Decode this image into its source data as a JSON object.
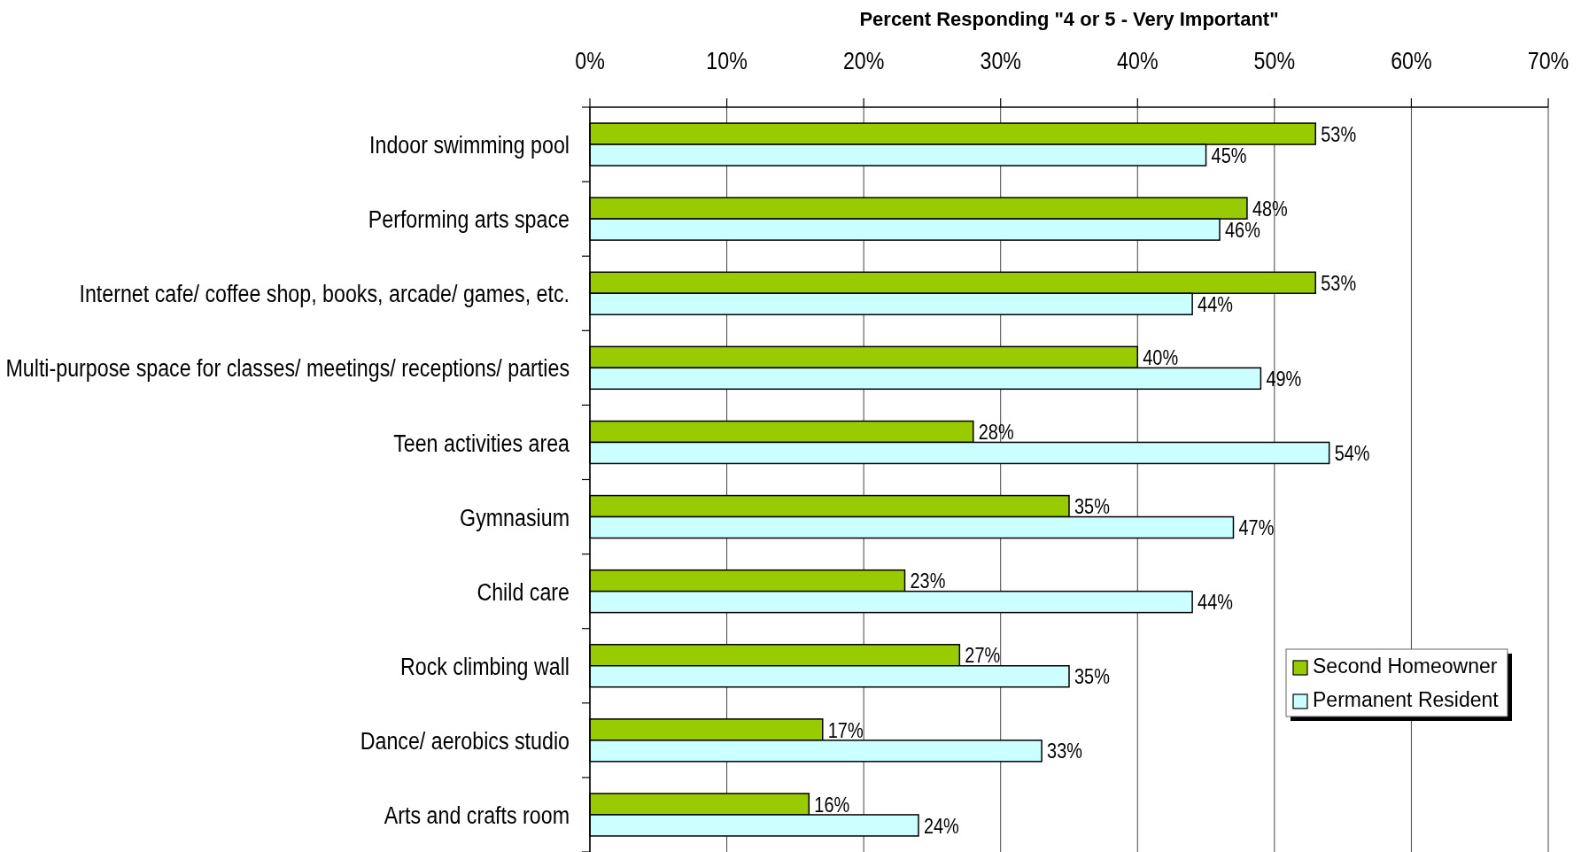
{
  "chart_data": {
    "type": "bar",
    "orientation": "horizontal",
    "xlabel": "Percent Responding \"4 or 5 - Very Important\"",
    "categories": [
      "Indoor swimming pool",
      "Performing arts space",
      "Internet cafe/ coffee shop, books, arcade/ games, etc.",
      "Multi-purpose space for classes/ meetings/ receptions/ parties",
      "Teen activities area",
      "Gymnasium",
      "Child care",
      "Rock climbing wall",
      "Dance/ aerobics studio",
      "Arts and crafts room"
    ],
    "series": [
      {
        "name": "Second Homeowner",
        "color": "#99cc00",
        "values": [
          53,
          48,
          53,
          40,
          28,
          35,
          23,
          27,
          17,
          16
        ],
        "value_labels": [
          "53%",
          "48%",
          "53%",
          "40%",
          "28%",
          "35%",
          "23%",
          "27%",
          "17%",
          "16%"
        ]
      },
      {
        "name": "Permanent Resident",
        "color": "#ccffff",
        "values": [
          45,
          46,
          44,
          49,
          54,
          47,
          44,
          35,
          33,
          24
        ],
        "value_labels": [
          "45%",
          "46%",
          "44%",
          "49%",
          "54%",
          "47%",
          "44%",
          "35%",
          "33%",
          "24%"
        ]
      }
    ],
    "xlim": [
      0,
      70
    ],
    "xticks": [
      {
        "value": 0,
        "label": "0%"
      },
      {
        "value": 10,
        "label": "10%"
      },
      {
        "value": 20,
        "label": "20%"
      },
      {
        "value": 30,
        "label": "30%"
      },
      {
        "value": 40,
        "label": "40%"
      },
      {
        "value": 50,
        "label": "50%"
      },
      {
        "value": 60,
        "label": "60%"
      },
      {
        "value": 70,
        "label": "70%"
      }
    ],
    "grid": "x",
    "legend": "bottom right"
  }
}
